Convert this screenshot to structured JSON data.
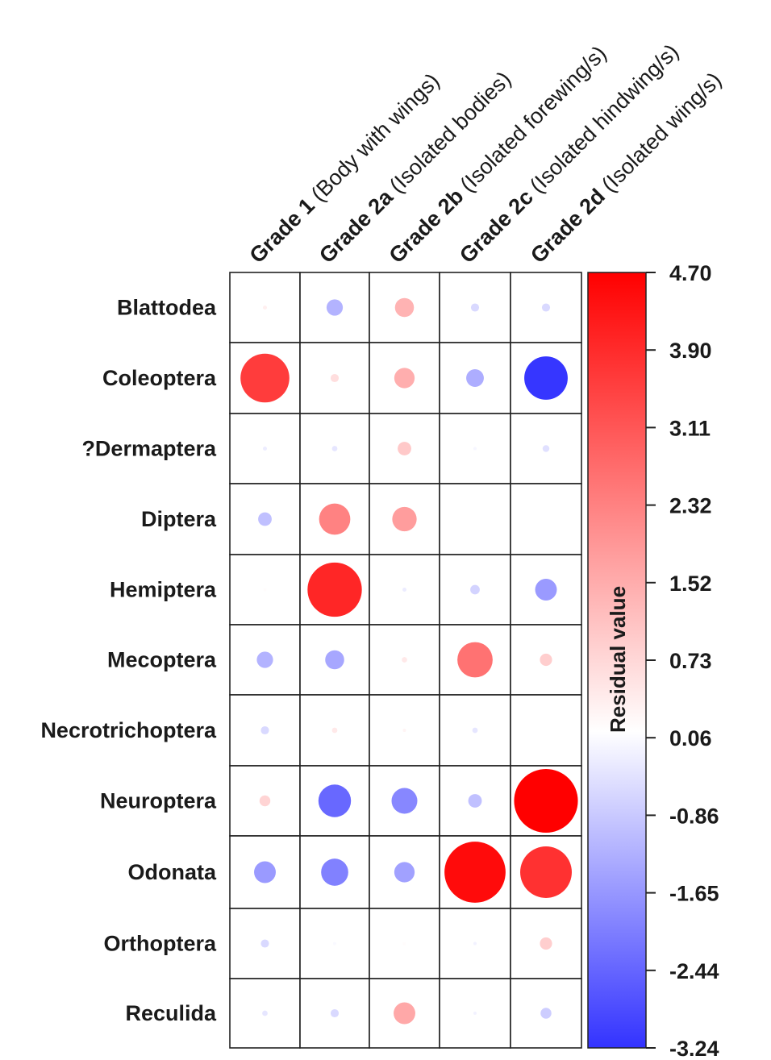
{
  "chart_data": {
    "type": "heatmap",
    "title": "",
    "colorbar_label": "Residual value",
    "color_range": [
      -3.24,
      4.7
    ],
    "colors": {
      "negative": "#3333ff",
      "zero": "#ffffff",
      "positive": "#ff0000"
    },
    "columns": [
      {
        "bold": "Grade 1",
        "rest": " (Body with wings)"
      },
      {
        "bold": "Grade 2a",
        "rest": " (Isolated bodies)"
      },
      {
        "bold": "Grade 2b",
        "rest": " (Isolated forewing/s)"
      },
      {
        "bold": "Grade 2c",
        "rest": " (Isolated hindwing/s)"
      },
      {
        "bold": "Grade 2d",
        "rest": " (Isolated wing/s)"
      }
    ],
    "rows": [
      "Blattodea",
      "Coleoptera",
      "?Dermaptera",
      "Diptera",
      "Hemiptera",
      "Mecoptera",
      "Necrotrichoptera",
      "Neuroptera",
      "Odonata",
      "Orthoptera",
      "Reculida"
    ],
    "values": [
      [
        0.3,
        -1.2,
        1.4,
        -0.6,
        -0.6
      ],
      [
        3.6,
        0.6,
        1.5,
        -1.3,
        -3.2
      ],
      [
        -0.3,
        -0.4,
        1.0,
        -0.15,
        -0.5
      ],
      [
        -1.0,
        2.3,
        1.8,
        null,
        null
      ],
      [
        0.05,
        4.0,
        -0.3,
        -0.7,
        -1.6
      ],
      [
        -1.2,
        -1.4,
        0.4,
        2.6,
        0.9
      ],
      [
        -0.6,
        0.4,
        0.2,
        -0.4,
        0.0
      ],
      [
        0.8,
        -2.4,
        -1.9,
        -1.0,
        4.7
      ],
      [
        -1.6,
        -2.0,
        -1.5,
        4.5,
        3.8
      ],
      [
        -0.6,
        -0.1,
        0.05,
        -0.2,
        0.9
      ],
      [
        -0.4,
        -0.6,
        1.6,
        -0.2,
        -0.8
      ]
    ],
    "colorbar_ticks": [
      "4.70",
      "3.90",
      "3.11",
      "2.32",
      "1.52",
      "0.73",
      "0.06",
      "-0.86",
      "-1.65",
      "-2.44",
      "-3.24"
    ]
  }
}
